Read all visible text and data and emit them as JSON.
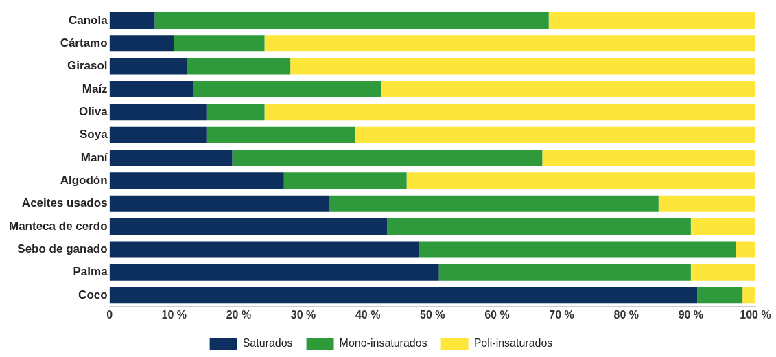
{
  "chart_data": {
    "type": "bar",
    "orientation": "horizontal",
    "stacked": true,
    "categories": [
      "Canola",
      "Cártamo",
      "Girasol",
      "Maíz",
      "Oliva",
      "Soya",
      "Maní",
      "Algodón",
      "Aceites usados",
      "Manteca de cerdo",
      "Sebo de ganado",
      "Palma",
      "Coco"
    ],
    "series": [
      {
        "name": "Saturados",
        "color": "#0d2f5e",
        "values": [
          7,
          10,
          12,
          13,
          15,
          15,
          19,
          27,
          34,
          43,
          48,
          51,
          91
        ]
      },
      {
        "name": "Mono-insaturados",
        "color": "#2e9a3c",
        "values": [
          61,
          14,
          16,
          29,
          9,
          23,
          48,
          19,
          51,
          47,
          49,
          39,
          7
        ]
      },
      {
        "name": "Poli-insaturados",
        "color": "#fde53a",
        "values": [
          32,
          76,
          72,
          58,
          76,
          62,
          33,
          54,
          15,
          10,
          3,
          10,
          2
        ]
      }
    ],
    "xlim": [
      0,
      100
    ],
    "xticks": [
      {
        "value": 0,
        "label": "0"
      },
      {
        "value": 10,
        "label": "10 %"
      },
      {
        "value": 20,
        "label": "20 %"
      },
      {
        "value": 30,
        "label": "30 %"
      },
      {
        "value": 40,
        "label": "40 %"
      },
      {
        "value": 50,
        "label": "50 %"
      },
      {
        "value": 60,
        "label": "60 %"
      },
      {
        "value": 70,
        "label": "70 %"
      },
      {
        "value": 80,
        "label": "80 %"
      },
      {
        "value": 90,
        "label": "90 %"
      },
      {
        "value": 100,
        "label": "100 %"
      }
    ],
    "grid": false,
    "legend": "bottom"
  }
}
